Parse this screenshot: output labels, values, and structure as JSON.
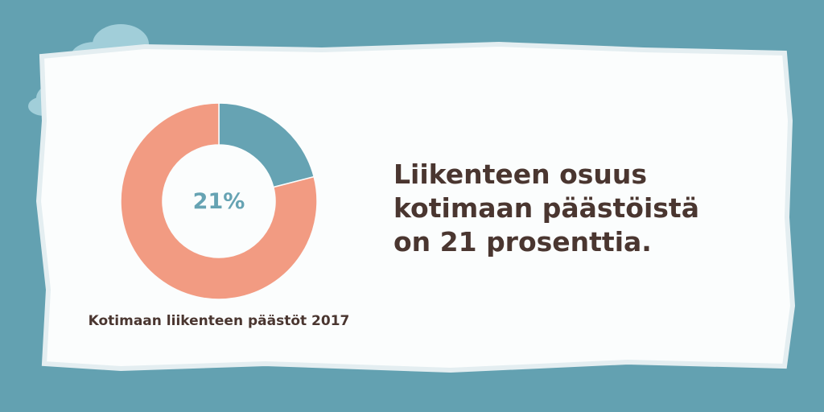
{
  "chart_data": {
    "type": "pie",
    "title": "Kotimaan liikenteen päästöt 2017",
    "values": [
      21,
      79
    ],
    "value_labels": [
      "21%",
      null
    ],
    "colors": [
      "#66a3b3",
      "#f29b82"
    ],
    "donut": true
  },
  "text": {
    "headline": [
      "Liikenteen osuus",
      "kotimaan päästöistä",
      "on 21 prosenttia."
    ]
  }
}
